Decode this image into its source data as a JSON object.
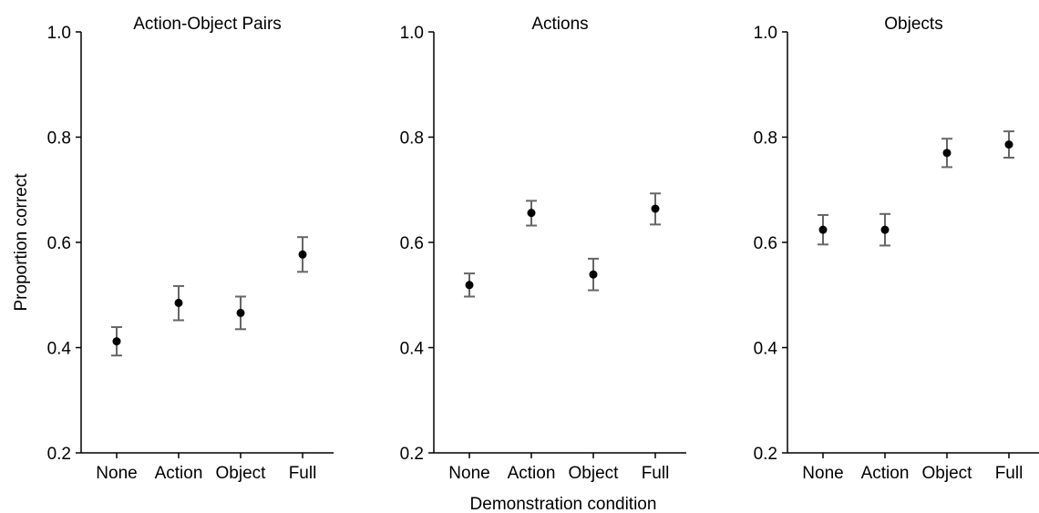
{
  "figure": {
    "xlabel": "Demonstration condition",
    "ylabel": "Proportion correct"
  },
  "chart_data": [
    {
      "type": "scatter",
      "title": "Action-Object Pairs",
      "categories": [
        "None",
        "Action",
        "Object",
        "Full"
      ],
      "values": [
        0.412,
        0.485,
        0.466,
        0.577
      ],
      "error_low": [
        0.385,
        0.452,
        0.435,
        0.544
      ],
      "error_high": [
        0.439,
        0.517,
        0.497,
        0.61
      ],
      "ylim": [
        0.2,
        1.0
      ],
      "yticks": [
        "0.2",
        "0.4",
        "0.6",
        "0.8",
        "1.0"
      ],
      "grid": false
    },
    {
      "type": "scatter",
      "title": "Actions",
      "categories": [
        "None",
        "Action",
        "Object",
        "Full"
      ],
      "values": [
        0.519,
        0.656,
        0.539,
        0.664
      ],
      "error_low": [
        0.497,
        0.632,
        0.509,
        0.634
      ],
      "error_high": [
        0.541,
        0.679,
        0.569,
        0.693
      ],
      "ylim": [
        0.2,
        1.0
      ],
      "yticks": [
        "0.2",
        "0.4",
        "0.6",
        "0.8",
        "1.0"
      ],
      "grid": false
    },
    {
      "type": "scatter",
      "title": "Objects",
      "categories": [
        "None",
        "Action",
        "Object",
        "Full"
      ],
      "values": [
        0.624,
        0.624,
        0.77,
        0.786
      ],
      "error_low": [
        0.596,
        0.594,
        0.743,
        0.761
      ],
      "error_high": [
        0.652,
        0.654,
        0.797,
        0.811
      ],
      "ylim": [
        0.2,
        1.0
      ],
      "yticks": [
        "0.2",
        "0.4",
        "0.6",
        "0.8",
        "1.0"
      ],
      "grid": false
    }
  ],
  "style": {
    "axis_color": "#000000",
    "errorbar_color": "#666666",
    "marker_color": "#000000"
  }
}
